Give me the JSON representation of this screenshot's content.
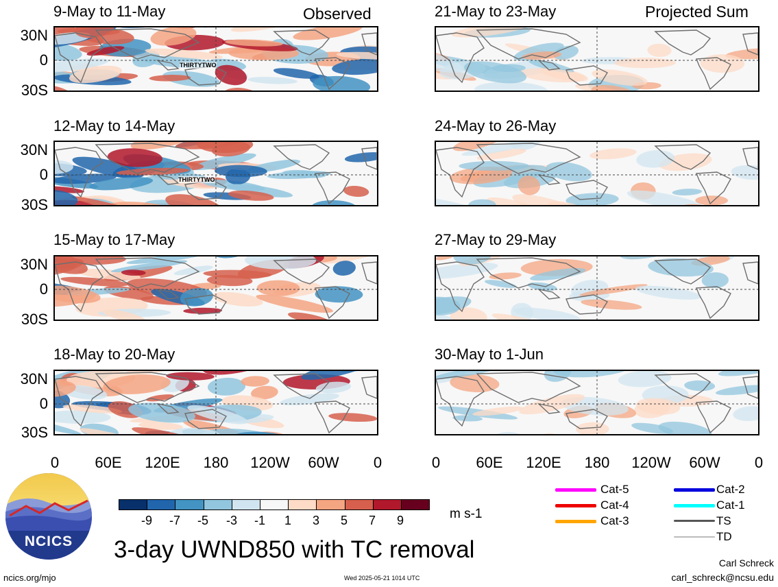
{
  "headers": {
    "left": "Observed",
    "right": "Projected Sum"
  },
  "panels_left": [
    {
      "title": "9-May to 11-May",
      "storm_label": "THIRTYTWO"
    },
    {
      "title": "12-May to 14-May",
      "storm_label": "THIRTYTWO"
    },
    {
      "title": "15-May to 17-May",
      "storm_label": ""
    },
    {
      "title": "18-May to 20-May",
      "storm_label": ""
    }
  ],
  "panels_right": [
    {
      "title": "21-May to 23-May"
    },
    {
      "title": "24-May to 26-May"
    },
    {
      "title": "27-May to 29-May"
    },
    {
      "title": "30-May to 1-Jun"
    }
  ],
  "y_ticks": [
    "30N",
    "0",
    "30S"
  ],
  "x_ticks": [
    "0",
    "60E",
    "120E",
    "180",
    "120W",
    "60W",
    "0"
  ],
  "colorbar": {
    "tick_labels": [
      "-9",
      "-7",
      "-5",
      "-3",
      "-1",
      "1",
      "3",
      "5",
      "7",
      "9"
    ],
    "colors": [
      "#08306b",
      "#2166ac",
      "#4393c3",
      "#92c5de",
      "#d1e5f0",
      "#f7f7f7",
      "#fddbc7",
      "#f4a582",
      "#d6604d",
      "#b2182b",
      "#67001f"
    ],
    "units": "m s-1"
  },
  "legend": [
    {
      "label": "Cat-5",
      "color": "#ff00ff"
    },
    {
      "label": "Cat-4",
      "color": "#ee0000"
    },
    {
      "label": "Cat-3",
      "color": "#ffa500"
    },
    {
      "label": "Cat-2",
      "color": "#0000dd"
    },
    {
      "label": "Cat-1",
      "color": "#00ffff"
    },
    {
      "label": "TS",
      "color": "#555555"
    },
    {
      "label": "TD",
      "color": "#bbbbbb"
    }
  ],
  "logo_text": "NCICS",
  "main_title": "3-day UWND850 with TC removal",
  "footer": {
    "url": "ncics.org/mjo",
    "timestamp": "Wed 2025-05-21 1014 UTC",
    "author": "Carl Schreck",
    "email": "carl_schreck@ncsu.edu"
  }
}
